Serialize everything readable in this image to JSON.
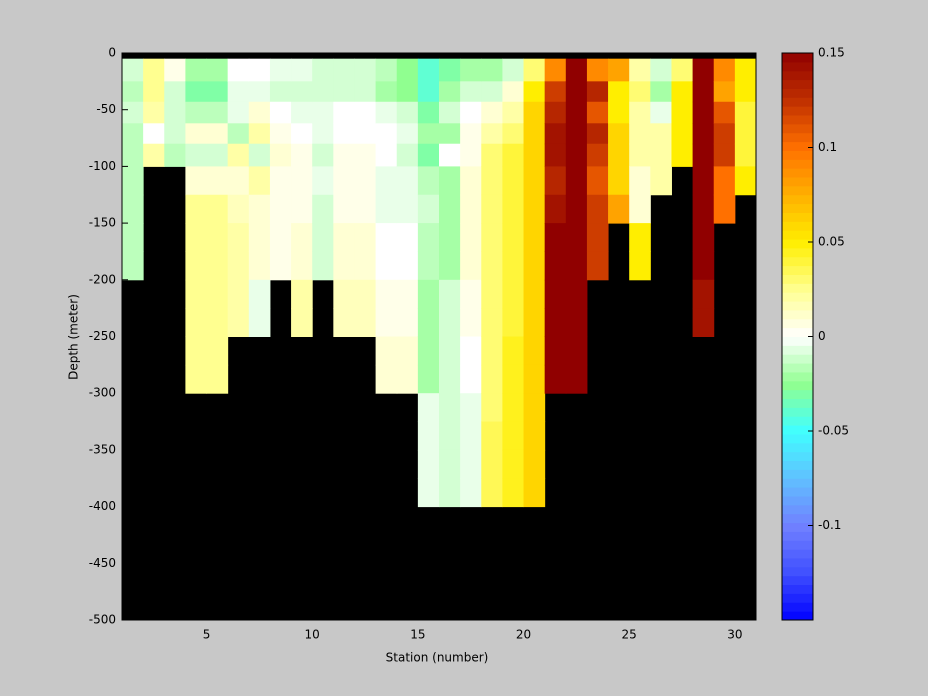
{
  "chart_data": {
    "type": "heatmap",
    "xlabel": "Station (number)",
    "ylabel": "Depth (meter)",
    "xlim": [
      1,
      31
    ],
    "xticks": [
      5,
      10,
      15,
      20,
      25,
      30
    ],
    "ylim": [
      -500,
      0
    ],
    "yticks": [
      0,
      -50,
      -100,
      -150,
      -200,
      -250,
      -300,
      -350,
      -400,
      -450,
      -500
    ],
    "x_edges": [
      1,
      2,
      3,
      4,
      5,
      6,
      7,
      8,
      9,
      10,
      11,
      12,
      13,
      14,
      15,
      16,
      17,
      18,
      19,
      20,
      21,
      22,
      23,
      24,
      25,
      26,
      27,
      28,
      29,
      30,
      31
    ],
    "depth_edges": [
      -5,
      -25,
      -43,
      -62,
      -80,
      -100,
      -125,
      -150,
      -175,
      -200,
      -225,
      -250,
      -275,
      -300,
      -325,
      -350,
      -375,
      -400
    ],
    "background": "#000000",
    "clim": [
      -0.15,
      0.15
    ],
    "cticks": [
      0.15,
      0.1,
      0.05,
      0,
      -0.05,
      -0.1
    ],
    "colormap": [
      "#0000ff",
      "#4050ff",
      "#7080ff",
      "#60c0ff",
      "#40ffff",
      "#90ff90",
      "#ffffff",
      "#ffff90",
      "#ffee00",
      "#ffb000",
      "#ff7000",
      "#c03000",
      "#900000"
    ],
    "values": [
      [
        -0.01,
        -0.015,
        -0.01,
        -0.015,
        -0.015,
        -0.015,
        -0.015,
        -0.015,
        -0.015,
        null,
        null,
        null,
        null,
        null,
        null,
        null,
        null
      ],
      [
        0.025,
        0.025,
        0.02,
        0,
        0.02,
        null,
        null,
        null,
        null,
        null,
        null,
        null,
        null,
        null,
        null,
        null,
        null
      ],
      [
        0.005,
        -0.01,
        -0.01,
        -0.01,
        -0.015,
        null,
        null,
        null,
        null,
        null,
        null,
        null,
        null,
        null,
        null,
        null,
        null
      ],
      [
        -0.02,
        -0.03,
        -0.015,
        0.01,
        -0.01,
        0.01,
        0.025,
        0.025,
        0.025,
        0.025,
        0.025,
        0.025,
        0.025,
        null,
        null,
        null,
        null
      ],
      [
        -0.02,
        -0.03,
        -0.015,
        0.01,
        -0.01,
        0.01,
        0.025,
        0.025,
        0.025,
        0.025,
        0.025,
        0.025,
        0.025,
        null,
        null,
        null,
        null
      ],
      [
        0,
        -0.005,
        -0.005,
        -0.015,
        0.02,
        0.01,
        0.015,
        0.02,
        0.02,
        0.02,
        0.02,
        null,
        null,
        null,
        null,
        null,
        null
      ],
      [
        0,
        -0.005,
        0.01,
        0.02,
        -0.01,
        0.02,
        0.01,
        0.01,
        0.01,
        -0.005,
        -0.005,
        null,
        null,
        null,
        null,
        null,
        null
      ],
      [
        -0.005,
        -0.01,
        0,
        0.005,
        0.01,
        0.005,
        0.005,
        0.005,
        0.005,
        null,
        null,
        null,
        null,
        null,
        null,
        null,
        null
      ],
      [
        -0.005,
        -0.01,
        -0.005,
        0,
        0.005,
        0.005,
        0.005,
        0.01,
        0.01,
        0.02,
        0.02,
        null,
        null,
        null,
        null,
        null,
        null
      ],
      [
        -0.01,
        -0.01,
        -0.005,
        -0.005,
        -0.01,
        -0.005,
        -0.01,
        -0.01,
        -0.01,
        null,
        null,
        null,
        null,
        null,
        null,
        null,
        null
      ],
      [
        -0.01,
        -0.01,
        0,
        0,
        0.005,
        0.005,
        0.005,
        0.01,
        0.01,
        0.015,
        0.015,
        null,
        null,
        null,
        null,
        null,
        null
      ],
      [
        -0.01,
        -0.01,
        0,
        0,
        0.005,
        0.005,
        0.005,
        0.01,
        0.01,
        0.015,
        0.015,
        null,
        null,
        null,
        null,
        null,
        null
      ],
      [
        -0.015,
        -0.02,
        -0.005,
        0,
        0,
        -0.005,
        -0.005,
        0,
        0,
        0.005,
        0.005,
        0.01,
        0.01,
        null,
        null,
        null,
        null
      ],
      [
        -0.025,
        -0.025,
        -0.01,
        -0.005,
        -0.01,
        -0.005,
        -0.005,
        0,
        0,
        0.005,
        0.005,
        0.01,
        0.01,
        null,
        null,
        null,
        null
      ],
      [
        -0.04,
        -0.04,
        -0.03,
        -0.02,
        -0.03,
        -0.015,
        -0.01,
        -0.015,
        -0.015,
        -0.02,
        -0.02,
        -0.02,
        -0.02,
        -0.005,
        -0.005,
        -0.005,
        -0.005
      ],
      [
        -0.03,
        -0.02,
        -0.01,
        -0.02,
        0,
        -0.02,
        -0.02,
        -0.02,
        -0.02,
        -0.01,
        -0.01,
        -0.01,
        -0.01,
        -0.01,
        -0.01,
        -0.01,
        -0.01
      ],
      [
        -0.02,
        -0.01,
        0,
        0.005,
        0.005,
        0.01,
        0.01,
        0.01,
        0.01,
        0.005,
        0.005,
        0,
        0,
        -0.005,
        -0.005,
        -0.005,
        -0.005
      ],
      [
        -0.02,
        -0.01,
        0.01,
        0.02,
        0.03,
        0.03,
        0.03,
        0.03,
        0.03,
        0.03,
        0.03,
        0.03,
        0.03,
        0.03,
        0.035,
        0.035,
        0.035
      ],
      [
        -0.01,
        0.01,
        0.02,
        0.03,
        0.04,
        0.04,
        0.04,
        0.04,
        0.04,
        0.04,
        0.04,
        0.045,
        0.045,
        0.045,
        0.045,
        0.045,
        0.045
      ],
      [
        0.03,
        0.05,
        0.06,
        0.06,
        0.06,
        0.06,
        0.06,
        0.06,
        0.06,
        0.06,
        0.06,
        0.06,
        0.06,
        0.06,
        0.06,
        0.06,
        0.06
      ],
      [
        0.09,
        0.12,
        0.13,
        0.14,
        0.14,
        0.13,
        0.14,
        0.15,
        0.15,
        0.15,
        0.15,
        0.15,
        0.15,
        null,
        null,
        null,
        null
      ],
      [
        0.15,
        0.15,
        0.15,
        0.15,
        0.15,
        0.15,
        0.15,
        0.15,
        0.15,
        0.15,
        0.15,
        0.15,
        0.15,
        null,
        null,
        null,
        null
      ],
      [
        0.09,
        0.13,
        0.11,
        0.13,
        0.12,
        0.11,
        0.12,
        0.12,
        0.12,
        null,
        null,
        null,
        null,
        null,
        null,
        null,
        null
      ],
      [
        0.08,
        0.05,
        0.05,
        0.06,
        0.06,
        0.06,
        0.08,
        null,
        null,
        null,
        null,
        null,
        null,
        null,
        null,
        null,
        null
      ],
      [
        0.02,
        0.03,
        0.02,
        0.02,
        0.02,
        0.01,
        0.01,
        0.05,
        0.05,
        null,
        null,
        null,
        null,
        null,
        null,
        null,
        null
      ],
      [
        -0.01,
        -0.02,
        -0.005,
        0.02,
        0.02,
        0.02,
        null,
        null,
        null,
        null,
        null,
        null,
        null,
        null,
        null,
        null,
        null
      ],
      [
        0.03,
        0.05,
        0.05,
        0.05,
        0.05,
        null,
        null,
        null,
        null,
        null,
        null,
        null,
        null,
        null,
        null,
        null,
        null
      ],
      [
        0.15,
        0.15,
        0.15,
        0.15,
        0.15,
        0.15,
        0.15,
        0.15,
        0.15,
        0.14,
        0.14,
        null,
        null,
        null,
        null,
        null,
        null
      ],
      [
        0.09,
        0.08,
        0.11,
        0.12,
        0.12,
        0.1,
        0.1,
        null,
        null,
        null,
        null,
        null,
        null,
        null,
        null,
        null,
        null
      ],
      [
        0.05,
        0.05,
        0.04,
        0.04,
        0.04,
        0.05,
        null,
        null,
        null,
        null,
        null,
        null,
        null,
        null,
        null,
        null,
        null
      ]
    ]
  }
}
